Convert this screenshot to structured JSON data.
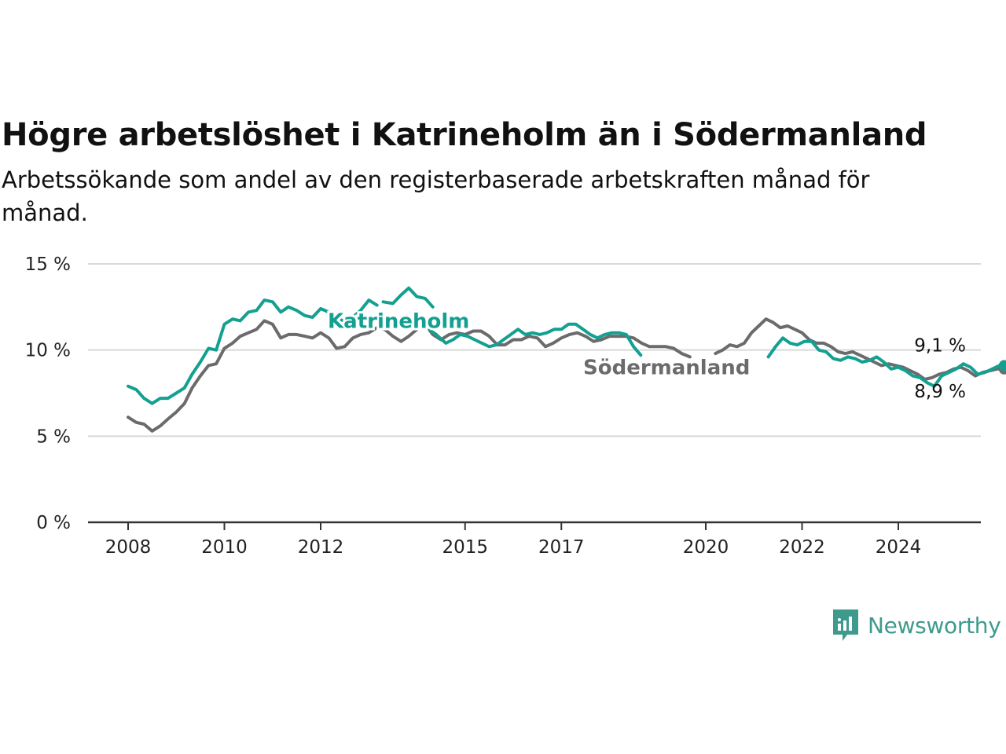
{
  "title": "Högre arbetslöshet i Katrineholm än i Södermanland",
  "subtitle": "Arbetssökande som andel av den registerbaserade arbetskraften månad för månad.",
  "brand": {
    "name": "Newsworthy"
  },
  "colors": {
    "katrineholm": "#14a090",
    "sodermanland": "#6b6b6d",
    "grid": "#d9d9d9",
    "axis": "#333333"
  },
  "chart_data": {
    "type": "line",
    "title": "Högre arbetslöshet i Katrineholm än i Södermanland",
    "xlabel": "",
    "ylabel": "",
    "ylim": [
      0,
      15
    ],
    "xlim": [
      2007.9,
      2025.5
    ],
    "yticks": [
      0,
      5,
      10,
      15
    ],
    "ytick_labels": [
      "0 %",
      "5 %",
      "10 %",
      "15 %"
    ],
    "xticks": [
      2008,
      2010,
      2012,
      2015,
      2017,
      2020,
      2022,
      2024
    ],
    "xtick_labels": [
      "2008",
      "2010",
      "2012",
      "2015",
      "2017",
      "2020",
      "2022",
      "2024"
    ],
    "grid": "horizontal",
    "legend": "inline labels",
    "series": [
      {
        "name": "Katrineholm",
        "end_label": "9,1 %",
        "segments": [
          [
            [
              2008.0,
              7.9
            ],
            [
              2008.17,
              7.7
            ],
            [
              2008.33,
              7.2
            ],
            [
              2008.5,
              6.9
            ],
            [
              2008.67,
              7.2
            ],
            [
              2008.83,
              7.2
            ],
            [
              2009.0,
              7.5
            ],
            [
              2009.17,
              7.8
            ],
            [
              2009.33,
              8.6
            ],
            [
              2009.5,
              9.3
            ],
            [
              2009.67,
              10.1
            ],
            [
              2009.83,
              10.0
            ],
            [
              2010.0,
              11.5
            ],
            [
              2010.17,
              11.8
            ],
            [
              2010.33,
              11.7
            ],
            [
              2010.5,
              12.2
            ],
            [
              2010.67,
              12.3
            ],
            [
              2010.83,
              12.9
            ],
            [
              2011.0,
              12.8
            ],
            [
              2011.17,
              12.2
            ],
            [
              2011.33,
              12.5
            ],
            [
              2011.5,
              12.3
            ],
            [
              2011.67,
              12.0
            ],
            [
              2011.83,
              11.9
            ],
            [
              2012.0,
              12.4
            ],
            [
              2012.17,
              12.2
            ],
            [
              2012.33,
              11.8
            ],
            [
              2012.5,
              11.7
            ],
            [
              2012.67,
              11.9
            ],
            [
              2012.83,
              12.3
            ],
            [
              2013.0,
              12.9
            ],
            [
              2013.17,
              12.6
            ]
          ],
          [
            [
              2013.3,
              12.8
            ],
            [
              2013.5,
              12.7
            ],
            [
              2013.67,
              13.2
            ],
            [
              2013.83,
              13.6
            ],
            [
              2014.0,
              13.1
            ],
            [
              2014.17,
              13.0
            ],
            [
              2014.33,
              12.5
            ]
          ],
          [
            [
              2014.2,
              11.3
            ],
            [
              2014.4,
              10.9
            ],
            [
              2014.6,
              10.4
            ],
            [
              2014.75,
              10.6
            ],
            [
              2014.9,
              10.9
            ],
            [
              2015.05,
              10.8
            ],
            [
              2015.2,
              10.6
            ],
            [
              2015.35,
              10.4
            ],
            [
              2015.5,
              10.2
            ],
            [
              2015.65,
              10.3
            ],
            [
              2015.8,
              10.6
            ],
            [
              2015.95,
              10.9
            ],
            [
              2016.1,
              11.2
            ],
            [
              2016.25,
              10.9
            ],
            [
              2016.4,
              11.0
            ],
            [
              2016.55,
              10.9
            ],
            [
              2016.7,
              11.0
            ],
            [
              2016.85,
              11.2
            ],
            [
              2017.0,
              11.2
            ],
            [
              2017.15,
              11.5
            ],
            [
              2017.3,
              11.5
            ],
            [
              2017.45,
              11.2
            ],
            [
              2017.6,
              10.9
            ],
            [
              2017.75,
              10.7
            ],
            [
              2017.9,
              10.9
            ],
            [
              2018.05,
              11.0
            ],
            [
              2018.2,
              11.0
            ],
            [
              2018.35,
              10.9
            ],
            [
              2018.5,
              10.2
            ],
            [
              2018.65,
              9.7
            ]
          ],
          [
            [
              2021.3,
              9.6
            ],
            [
              2021.45,
              10.2
            ],
            [
              2021.6,
              10.7
            ],
            [
              2021.75,
              10.4
            ],
            [
              2021.9,
              10.3
            ],
            [
              2022.05,
              10.5
            ],
            [
              2022.2,
              10.5
            ],
            [
              2022.35,
              10.0
            ],
            [
              2022.5,
              9.9
            ],
            [
              2022.65,
              9.5
            ],
            [
              2022.8,
              9.4
            ],
            [
              2022.95,
              9.6
            ],
            [
              2023.1,
              9.5
            ],
            [
              2023.25,
              9.3
            ],
            [
              2023.4,
              9.4
            ],
            [
              2023.55,
              9.6
            ],
            [
              2023.7,
              9.3
            ],
            [
              2023.85,
              8.9
            ],
            [
              2024.0,
              9.0
            ],
            [
              2024.15,
              8.8
            ],
            [
              2024.3,
              8.5
            ],
            [
              2024.45,
              8.4
            ],
            [
              2024.6,
              8.1
            ],
            [
              2024.75,
              7.9
            ],
            [
              2024.9,
              8.5
            ],
            [
              2025.05,
              8.7
            ],
            [
              2025.2,
              8.9
            ],
            [
              2025.35,
              9.2
            ],
            [
              2025.5,
              9.0
            ],
            [
              2025.65,
              8.6
            ],
            [
              2025.8,
              8.7
            ],
            [
              2025.95,
              8.9
            ],
            [
              2026.1,
              9.1
            ],
            [
              2026.2,
              9.1
            ]
          ]
        ]
      },
      {
        "name": "Södermanland",
        "end_label": "8,9 %",
        "segments": [
          [
            [
              2008.0,
              6.1
            ],
            [
              2008.17,
              5.8
            ],
            [
              2008.33,
              5.7
            ],
            [
              2008.5,
              5.3
            ],
            [
              2008.67,
              5.6
            ],
            [
              2008.83,
              6.0
            ],
            [
              2009.0,
              6.4
            ],
            [
              2009.17,
              6.9
            ],
            [
              2009.33,
              7.8
            ],
            [
              2009.5,
              8.5
            ],
            [
              2009.67,
              9.1
            ],
            [
              2009.83,
              9.2
            ],
            [
              2010.0,
              10.1
            ],
            [
              2010.17,
              10.4
            ],
            [
              2010.33,
              10.8
            ],
            [
              2010.5,
              11.0
            ],
            [
              2010.67,
              11.2
            ],
            [
              2010.83,
              11.7
            ],
            [
              2011.0,
              11.5
            ],
            [
              2011.17,
              10.7
            ],
            [
              2011.33,
              10.9
            ],
            [
              2011.5,
              10.9
            ],
            [
              2011.67,
              10.8
            ],
            [
              2011.83,
              10.7
            ],
            [
              2012.0,
              11.0
            ],
            [
              2012.17,
              10.7
            ],
            [
              2012.33,
              10.1
            ],
            [
              2012.5,
              10.2
            ],
            [
              2012.67,
              10.7
            ],
            [
              2012.83,
              10.9
            ],
            [
              2013.0,
              11.0
            ],
            [
              2013.17,
              11.3
            ],
            [
              2013.33,
              11.2
            ],
            [
              2013.5,
              10.8
            ],
            [
              2013.67,
              10.5
            ],
            [
              2013.83,
              10.8
            ],
            [
              2014.0,
              11.2
            ],
            [
              2014.17,
              11.5
            ],
            [
              2014.33,
              10.9
            ],
            [
              2014.5,
              10.6
            ],
            [
              2014.67,
              10.9
            ],
            [
              2014.83,
              11.0
            ],
            [
              2015.0,
              10.9
            ],
            [
              2015.17,
              11.1
            ],
            [
              2015.33,
              11.1
            ],
            [
              2015.5,
              10.8
            ],
            [
              2015.67,
              10.3
            ],
            [
              2015.83,
              10.3
            ],
            [
              2016.0,
              10.6
            ],
            [
              2016.17,
              10.6
            ],
            [
              2016.33,
              10.8
            ],
            [
              2016.5,
              10.7
            ],
            [
              2016.67,
              10.2
            ],
            [
              2016.83,
              10.4
            ],
            [
              2017.0,
              10.7
            ],
            [
              2017.17,
              10.9
            ],
            [
              2017.33,
              11.0
            ],
            [
              2017.5,
              10.8
            ],
            [
              2017.67,
              10.5
            ],
            [
              2017.83,
              10.6
            ],
            [
              2018.0,
              10.8
            ],
            [
              2018.17,
              10.8
            ],
            [
              2018.33,
              10.8
            ],
            [
              2018.5,
              10.7
            ],
            [
              2018.67,
              10.4
            ],
            [
              2018.83,
              10.2
            ],
            [
              2019.0,
              10.2
            ],
            [
              2019.17,
              10.2
            ],
            [
              2019.33,
              10.1
            ],
            [
              2019.5,
              9.8
            ],
            [
              2019.67,
              9.6
            ]
          ],
          [
            [
              2020.2,
              9.8
            ],
            [
              2020.35,
              10.0
            ],
            [
              2020.5,
              10.3
            ],
            [
              2020.65,
              10.2
            ],
            [
              2020.8,
              10.4
            ],
            [
              2020.95,
              11.0
            ],
            [
              2021.1,
              11.4
            ],
            [
              2021.25,
              11.8
            ],
            [
              2021.4,
              11.6
            ],
            [
              2021.55,
              11.3
            ],
            [
              2021.7,
              11.4
            ],
            [
              2021.85,
              11.2
            ],
            [
              2022.0,
              11.0
            ],
            [
              2022.15,
              10.6
            ],
            [
              2022.3,
              10.4
            ],
            [
              2022.45,
              10.4
            ],
            [
              2022.6,
              10.2
            ],
            [
              2022.75,
              9.9
            ],
            [
              2022.9,
              9.8
            ],
            [
              2023.05,
              9.9
            ],
            [
              2023.2,
              9.7
            ],
            [
              2023.35,
              9.5
            ],
            [
              2023.5,
              9.3
            ],
            [
              2023.65,
              9.1
            ],
            [
              2023.8,
              9.2
            ],
            [
              2023.95,
              9.1
            ],
            [
              2024.1,
              9.0
            ],
            [
              2024.25,
              8.8
            ],
            [
              2024.4,
              8.6
            ],
            [
              2024.55,
              8.3
            ],
            [
              2024.7,
              8.4
            ],
            [
              2024.85,
              8.6
            ],
            [
              2025.0,
              8.7
            ],
            [
              2025.15,
              8.9
            ],
            [
              2025.3,
              9.0
            ],
            [
              2025.45,
              8.8
            ],
            [
              2025.6,
              8.5
            ],
            [
              2025.75,
              8.7
            ],
            [
              2025.9,
              8.8
            ],
            [
              2026.05,
              8.9
            ],
            [
              2026.2,
              8.9
            ]
          ]
        ]
      }
    ]
  }
}
